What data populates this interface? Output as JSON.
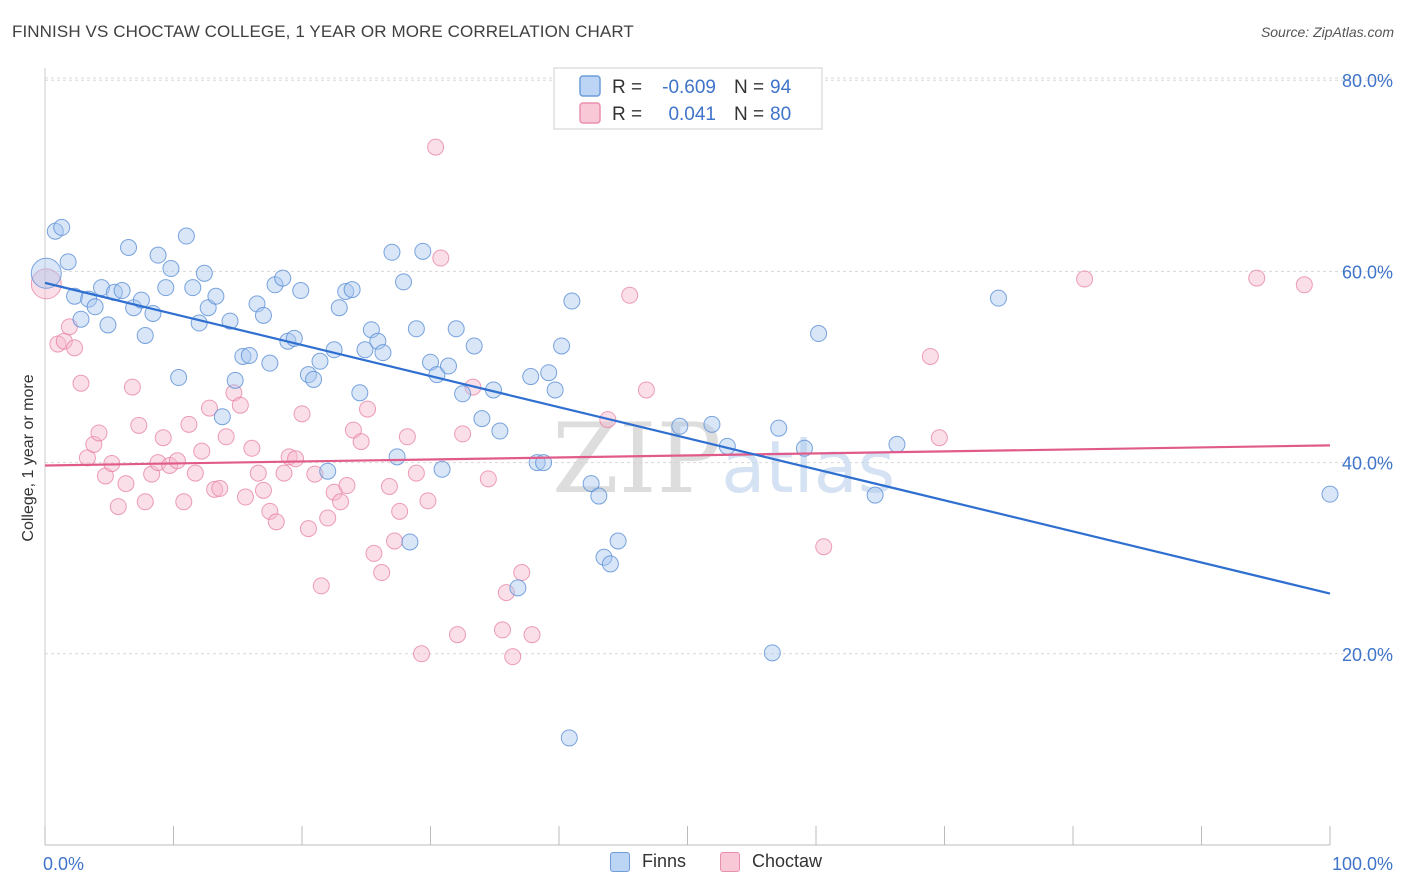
{
  "header": {
    "title": "FINNISH VS CHOCTAW COLLEGE, 1 YEAR OR MORE CORRELATION CHART",
    "source": "Source: ZipAtlas.com"
  },
  "watermark": "ZIPatlas",
  "colors": {
    "finns_fill": "#a9c8f0",
    "finns_stroke": "#5b8fd6",
    "finns_line": "#2f6fd0",
    "choctaw_fill": "#f7b9cc",
    "choctaw_stroke": "#e67fa2",
    "choctaw_line": "#e05b8a",
    "axis_label_blue": "#3f74c9",
    "grid": "#d8d8d8"
  },
  "legend_box": {
    "rows": [
      {
        "r_label": "R =",
        "r_value": "-0.609",
        "n_label": "N =",
        "n_value": "94"
      },
      {
        "r_label": "R =",
        "r_value": "0.041",
        "n_label": "N =",
        "n_value": "80"
      }
    ]
  },
  "legend_bottom": [
    {
      "label": "Finns"
    },
    {
      "label": "Choctaw"
    }
  ],
  "chart_data": {
    "type": "scatter",
    "title": "FINNISH VS CHOCTAW COLLEGE, 1 YEAR OR MORE CORRELATION CHART",
    "xlabel": "",
    "ylabel": "College, 1 year or more",
    "xlim": [
      0,
      100
    ],
    "ylim": [
      0,
      85
    ],
    "x_tick_labels": [
      "0.0%",
      "100.0%"
    ],
    "y_ticks": [
      20,
      40,
      60,
      80
    ],
    "y_tick_labels": [
      "20.0%",
      "40.0%",
      "60.0%",
      "80.0%"
    ],
    "grid": true,
    "legend_position": "top-center",
    "series": [
      {
        "name": "Finns",
        "r": -0.609,
        "n": 94,
        "trend": {
          "x0": 0,
          "y0": 58.8,
          "x1": 100,
          "y1": 26.3
        },
        "points": [
          [
            0.1,
            59.8
          ],
          [
            0.8,
            64.2
          ],
          [
            1.3,
            64.6
          ],
          [
            1.8,
            61.0
          ],
          [
            2.3,
            57.4
          ],
          [
            2.8,
            55.0
          ],
          [
            3.4,
            57.1
          ],
          [
            3.9,
            56.3
          ],
          [
            4.4,
            58.3
          ],
          [
            4.9,
            54.4
          ],
          [
            5.4,
            57.8
          ],
          [
            6.0,
            58.0
          ],
          [
            6.5,
            62.5
          ],
          [
            6.9,
            56.2
          ],
          [
            7.5,
            57.0
          ],
          [
            7.8,
            53.3
          ],
          [
            8.4,
            55.6
          ],
          [
            8.8,
            61.7
          ],
          [
            9.4,
            58.3
          ],
          [
            9.8,
            60.3
          ],
          [
            10.4,
            48.9
          ],
          [
            11.0,
            63.7
          ],
          [
            11.5,
            58.3
          ],
          [
            12.0,
            54.6
          ],
          [
            12.4,
            59.8
          ],
          [
            12.7,
            56.2
          ],
          [
            13.3,
            57.4
          ],
          [
            13.8,
            44.8
          ],
          [
            14.4,
            54.8
          ],
          [
            14.8,
            48.6
          ],
          [
            15.4,
            51.1
          ],
          [
            15.9,
            51.2
          ],
          [
            16.5,
            56.6
          ],
          [
            17.0,
            55.4
          ],
          [
            17.5,
            50.4
          ],
          [
            17.9,
            58.6
          ],
          [
            18.5,
            59.3
          ],
          [
            18.9,
            52.7
          ],
          [
            19.4,
            53.0
          ],
          [
            19.9,
            58.0
          ],
          [
            20.5,
            49.2
          ],
          [
            20.9,
            48.7
          ],
          [
            21.4,
            50.6
          ],
          [
            22.0,
            39.1
          ],
          [
            22.5,
            51.8
          ],
          [
            22.9,
            56.2
          ],
          [
            23.4,
            57.9
          ],
          [
            23.9,
            58.1
          ],
          [
            24.5,
            47.3
          ],
          [
            24.9,
            51.8
          ],
          [
            25.4,
            53.9
          ],
          [
            25.9,
            52.7
          ],
          [
            26.3,
            51.5
          ],
          [
            27.0,
            62.0
          ],
          [
            27.4,
            40.6
          ],
          [
            27.9,
            58.9
          ],
          [
            28.4,
            31.7
          ],
          [
            28.9,
            54.0
          ],
          [
            29.4,
            62.1
          ],
          [
            30.0,
            50.5
          ],
          [
            30.5,
            49.2
          ],
          [
            30.9,
            39.3
          ],
          [
            31.4,
            50.1
          ],
          [
            32.0,
            54.0
          ],
          [
            32.5,
            47.2
          ],
          [
            33.4,
            52.2
          ],
          [
            34.0,
            44.6
          ],
          [
            34.9,
            47.6
          ],
          [
            35.4,
            43.3
          ],
          [
            36.8,
            26.9
          ],
          [
            37.8,
            49.0
          ],
          [
            38.3,
            40.0
          ],
          [
            38.8,
            40.0
          ],
          [
            39.2,
            49.4
          ],
          [
            39.7,
            47.6
          ],
          [
            40.2,
            52.2
          ],
          [
            40.8,
            11.2
          ],
          [
            41.0,
            56.9
          ],
          [
            42.5,
            37.8
          ],
          [
            43.1,
            36.5
          ],
          [
            43.5,
            30.1
          ],
          [
            44.0,
            29.4
          ],
          [
            44.6,
            31.8
          ],
          [
            49.4,
            43.8
          ],
          [
            51.9,
            44.0
          ],
          [
            53.1,
            41.7
          ],
          [
            56.6,
            20.1
          ],
          [
            57.1,
            43.6
          ],
          [
            59.1,
            41.5
          ],
          [
            60.2,
            53.5
          ],
          [
            64.6,
            36.6
          ],
          [
            66.3,
            41.9
          ],
          [
            74.2,
            57.2
          ],
          [
            100.0,
            36.7
          ]
        ]
      },
      {
        "name": "Choctaw",
        "r": 0.041,
        "n": 80,
        "trend": {
          "x0": 0,
          "y0": 39.7,
          "x1": 100,
          "y1": 41.8
        },
        "points": [
          [
            0.1,
            58.7
          ],
          [
            1.0,
            52.4
          ],
          [
            1.5,
            52.7
          ],
          [
            1.9,
            54.2
          ],
          [
            2.3,
            52.0
          ],
          [
            2.8,
            48.3
          ],
          [
            3.3,
            40.5
          ],
          [
            3.8,
            41.9
          ],
          [
            4.2,
            43.1
          ],
          [
            4.7,
            38.6
          ],
          [
            5.2,
            39.9
          ],
          [
            5.7,
            35.4
          ],
          [
            6.3,
            37.8
          ],
          [
            6.8,
            47.9
          ],
          [
            7.3,
            43.9
          ],
          [
            7.8,
            35.9
          ],
          [
            8.3,
            38.8
          ],
          [
            8.8,
            40.0
          ],
          [
            9.2,
            42.6
          ],
          [
            9.7,
            39.7
          ],
          [
            10.3,
            40.2
          ],
          [
            10.8,
            35.9
          ],
          [
            11.2,
            44.0
          ],
          [
            11.7,
            38.9
          ],
          [
            12.2,
            41.2
          ],
          [
            12.8,
            45.7
          ],
          [
            13.2,
            37.2
          ],
          [
            13.6,
            37.3
          ],
          [
            14.1,
            42.7
          ],
          [
            14.7,
            47.3
          ],
          [
            15.2,
            46.0
          ],
          [
            15.6,
            36.4
          ],
          [
            16.1,
            41.5
          ],
          [
            16.6,
            38.9
          ],
          [
            17.0,
            37.1
          ],
          [
            17.5,
            34.9
          ],
          [
            18.0,
            33.8
          ],
          [
            18.6,
            38.9
          ],
          [
            19.0,
            40.6
          ],
          [
            19.5,
            40.4
          ],
          [
            20.0,
            45.1
          ],
          [
            20.5,
            33.1
          ],
          [
            21.0,
            38.8
          ],
          [
            21.5,
            27.1
          ],
          [
            22.0,
            34.2
          ],
          [
            22.5,
            36.9
          ],
          [
            23.0,
            35.9
          ],
          [
            23.5,
            37.6
          ],
          [
            24.0,
            43.4
          ],
          [
            24.6,
            42.2
          ],
          [
            25.1,
            45.6
          ],
          [
            25.6,
            30.5
          ],
          [
            26.2,
            28.5
          ],
          [
            26.8,
            37.5
          ],
          [
            27.2,
            31.8
          ],
          [
            27.6,
            34.9
          ],
          [
            28.2,
            42.7
          ],
          [
            28.9,
            38.9
          ],
          [
            29.3,
            20.0
          ],
          [
            29.8,
            36.0
          ],
          [
            30.4,
            73.0
          ],
          [
            30.8,
            61.4
          ],
          [
            32.1,
            22.0
          ],
          [
            32.5,
            43.0
          ],
          [
            33.3,
            47.9
          ],
          [
            34.5,
            38.3
          ],
          [
            35.6,
            22.5
          ],
          [
            35.9,
            26.4
          ],
          [
            36.4,
            19.7
          ],
          [
            37.1,
            28.5
          ],
          [
            37.9,
            22.0
          ],
          [
            43.8,
            44.5
          ],
          [
            45.5,
            57.5
          ],
          [
            46.8,
            47.6
          ],
          [
            60.6,
            31.2
          ],
          [
            68.9,
            51.1
          ],
          [
            69.6,
            42.6
          ],
          [
            80.9,
            59.2
          ],
          [
            94.3,
            59.3
          ],
          [
            98.0,
            58.6
          ]
        ]
      }
    ]
  }
}
